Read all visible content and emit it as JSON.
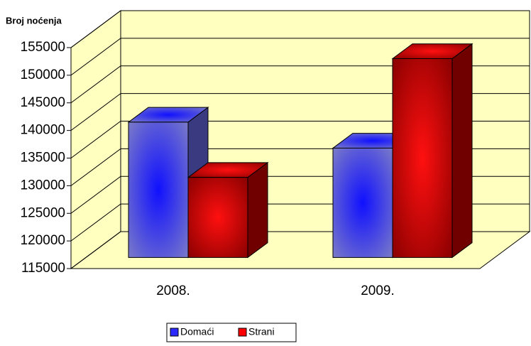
{
  "chart_data": {
    "type": "bar3d",
    "y_axis_label": "Broj noćenja",
    "categories": [
      "2008.",
      "2009."
    ],
    "series": [
      {
        "name": "Domaći",
        "color": "#2b2bff",
        "values": [
          139500,
          134800
        ]
      },
      {
        "name": "Strani",
        "color": "#ff0000",
        "values": [
          129500,
          151000
        ]
      }
    ],
    "ylim": [
      115000,
      155000
    ],
    "yticks": [
      115000,
      120000,
      125000,
      130000,
      135000,
      140000,
      145000,
      150000,
      155000
    ],
    "grid": true,
    "legend": "bottom"
  }
}
